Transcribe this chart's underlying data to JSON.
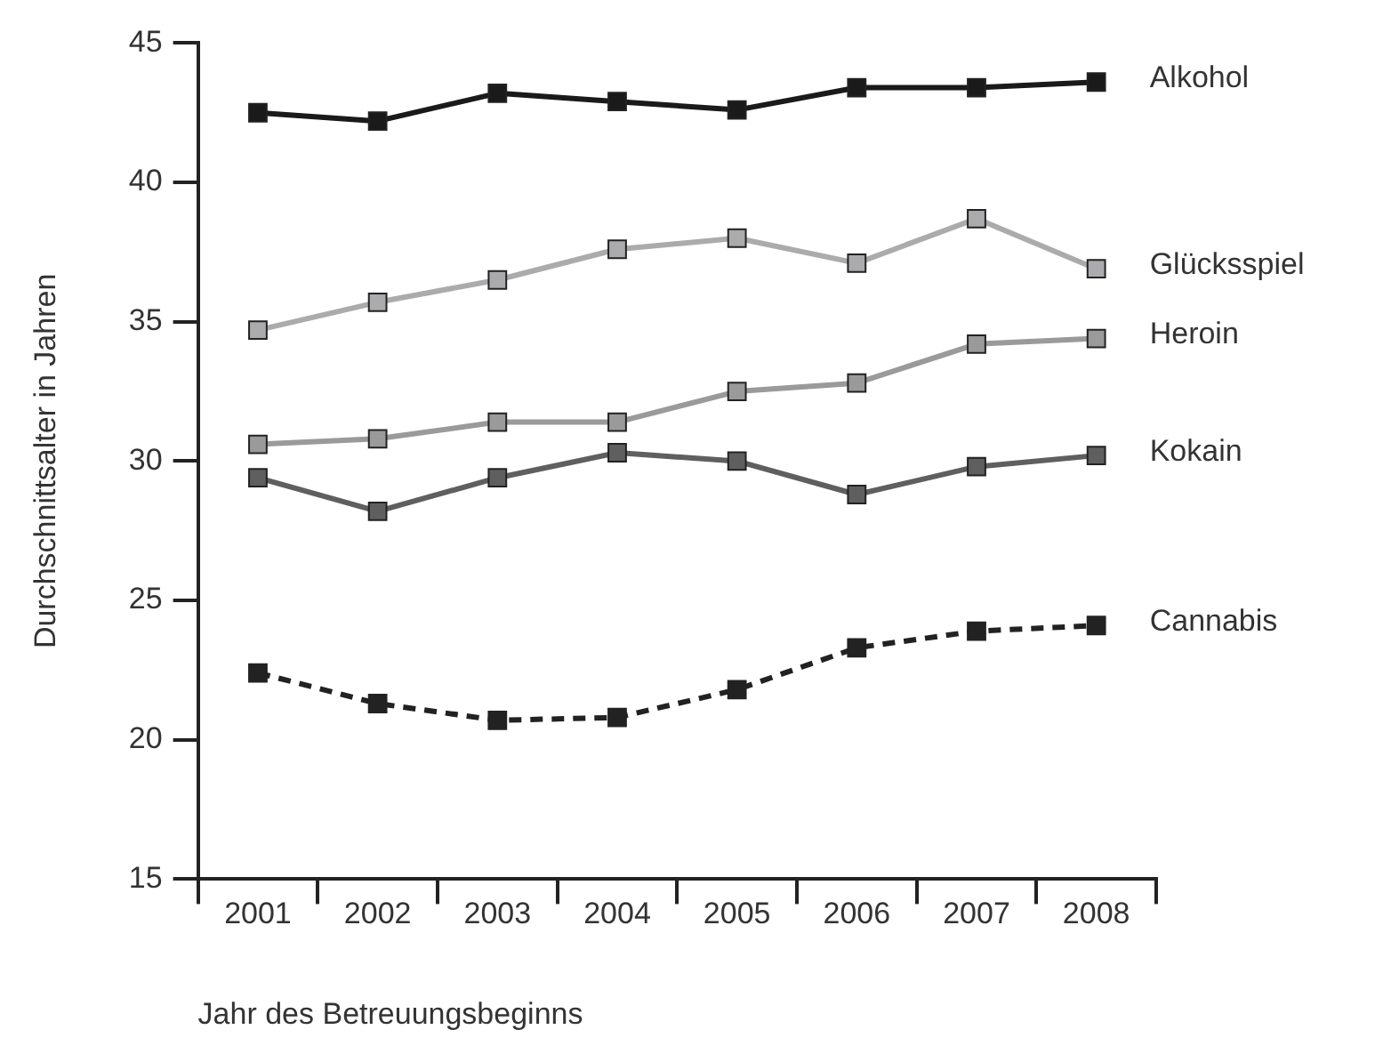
{
  "chart_data": {
    "type": "line",
    "xlabel": "Jahr des Betreuungsbeginns",
    "ylabel": "Durchschnittsalter in Jahren",
    "categories": [
      "2001",
      "2002",
      "2003",
      "2004",
      "2005",
      "2006",
      "2007",
      "2008"
    ],
    "ylim": [
      15,
      45
    ],
    "yticks": [
      15,
      20,
      25,
      30,
      35,
      40,
      45
    ],
    "grid": false,
    "legend": false,
    "marker": "square",
    "series": [
      {
        "name": "Alkohol",
        "color": "#1a1a1a",
        "values": [
          42.5,
          42.2,
          43.2,
          42.9,
          42.6,
          43.4,
          43.4,
          43.6
        ]
      },
      {
        "name": "Glücksspiel",
        "color": "#ababad",
        "values": [
          34.7,
          35.7,
          36.5,
          37.6,
          38.0,
          37.1,
          38.7,
          36.9
        ]
      },
      {
        "name": "Heroin",
        "color": "#9a9a9a",
        "values": [
          30.6,
          30.8,
          31.4,
          31.4,
          32.5,
          32.8,
          34.2,
          34.4
        ]
      },
      {
        "name": "Kokain",
        "color": "#5f5f5f",
        "values": [
          29.4,
          28.2,
          29.4,
          30.3,
          30.0,
          28.8,
          29.8,
          30.2
        ]
      },
      {
        "name": "Cannabis",
        "color": "#222222",
        "line_style": "dashed",
        "values": [
          22.4,
          21.3,
          20.7,
          20.8,
          21.8,
          23.3,
          23.9,
          24.1
        ]
      }
    ]
  }
}
